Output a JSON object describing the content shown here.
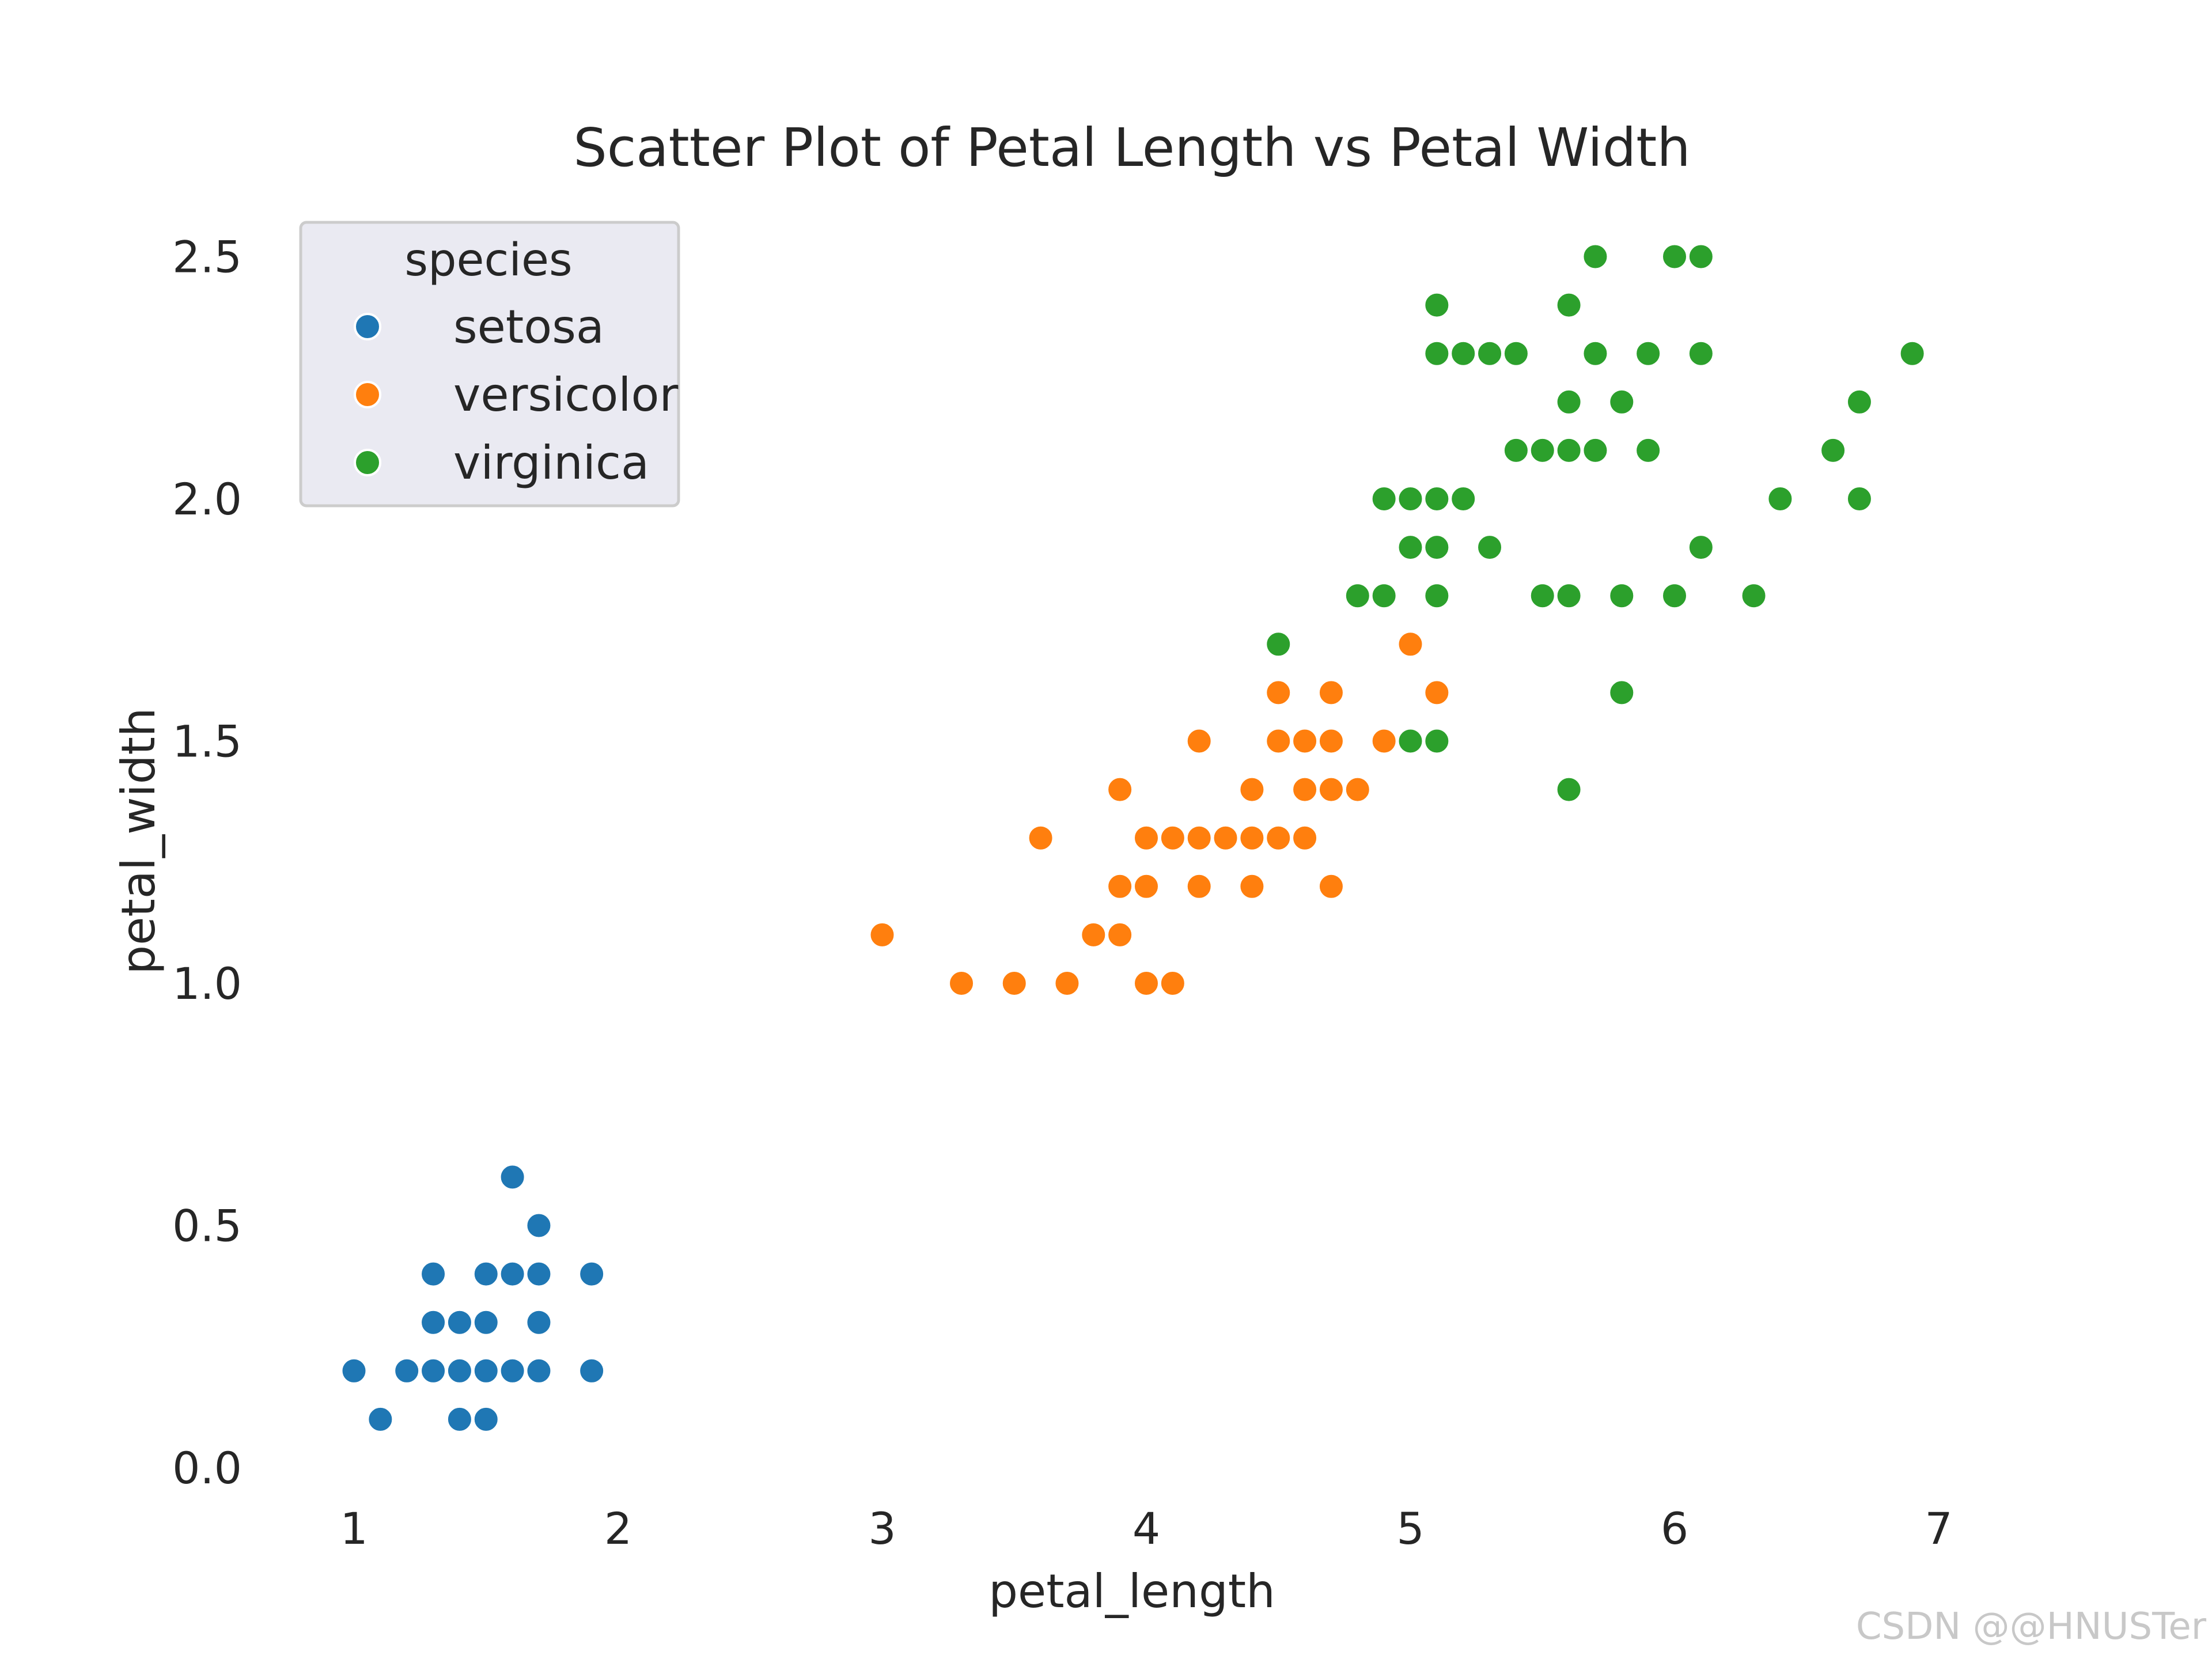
{
  "chart_data": {
    "type": "scatter",
    "title": "Scatter Plot of Petal Length vs Petal Width",
    "xlabel": "petal_length",
    "ylabel": "petal_width",
    "xlim": [
      0.7,
      7.2
    ],
    "ylim": [
      -0.05,
      2.6
    ],
    "xticks": [
      "1",
      "2",
      "3",
      "4",
      "5",
      "6",
      "7"
    ],
    "yticks": [
      "0.0",
      "0.5",
      "1.0",
      "1.5",
      "2.0",
      "2.5"
    ],
    "grid": false,
    "legend": {
      "title": "species",
      "placement": "top-left",
      "entries": [
        "setosa",
        "versicolor",
        "virginica"
      ]
    },
    "series": [
      {
        "name": "setosa",
        "color": "#1f77b4",
        "points": [
          [
            1.0,
            0.2
          ],
          [
            1.1,
            0.1
          ],
          [
            1.2,
            0.2
          ],
          [
            1.3,
            0.2
          ],
          [
            1.3,
            0.3
          ],
          [
            1.3,
            0.4
          ],
          [
            1.4,
            0.1
          ],
          [
            1.4,
            0.2
          ],
          [
            1.4,
            0.3
          ],
          [
            1.5,
            0.1
          ],
          [
            1.5,
            0.2
          ],
          [
            1.5,
            0.3
          ],
          [
            1.5,
            0.4
          ],
          [
            1.6,
            0.2
          ],
          [
            1.6,
            0.4
          ],
          [
            1.6,
            0.6
          ],
          [
            1.7,
            0.2
          ],
          [
            1.7,
            0.3
          ],
          [
            1.7,
            0.4
          ],
          [
            1.7,
            0.5
          ],
          [
            1.9,
            0.2
          ],
          [
            1.9,
            0.4
          ]
        ]
      },
      {
        "name": "versicolor",
        "color": "#ff7f0e",
        "points": [
          [
            3.0,
            1.1
          ],
          [
            3.3,
            1.0
          ],
          [
            3.5,
            1.0
          ],
          [
            3.6,
            1.3
          ],
          [
            3.7,
            1.0
          ],
          [
            3.8,
            1.1
          ],
          [
            3.9,
            1.1
          ],
          [
            3.9,
            1.2
          ],
          [
            3.9,
            1.4
          ],
          [
            4.0,
            1.0
          ],
          [
            4.0,
            1.2
          ],
          [
            4.0,
            1.3
          ],
          [
            4.1,
            1.0
          ],
          [
            4.1,
            1.3
          ],
          [
            4.2,
            1.2
          ],
          [
            4.2,
            1.3
          ],
          [
            4.2,
            1.5
          ],
          [
            4.3,
            1.3
          ],
          [
            4.4,
            1.2
          ],
          [
            4.4,
            1.3
          ],
          [
            4.4,
            1.4
          ],
          [
            4.5,
            1.3
          ],
          [
            4.5,
            1.5
          ],
          [
            4.5,
            1.6
          ],
          [
            4.6,
            1.3
          ],
          [
            4.6,
            1.4
          ],
          [
            4.6,
            1.5
          ],
          [
            4.7,
            1.2
          ],
          [
            4.7,
            1.4
          ],
          [
            4.7,
            1.5
          ],
          [
            4.7,
            1.6
          ],
          [
            4.8,
            1.4
          ],
          [
            4.9,
            1.5
          ],
          [
            5.0,
            1.7
          ],
          [
            5.1,
            1.6
          ]
        ]
      },
      {
        "name": "virginica",
        "color": "#2ca02c",
        "points": [
          [
            4.5,
            1.7
          ],
          [
            4.8,
            1.8
          ],
          [
            4.9,
            1.8
          ],
          [
            4.9,
            2.0
          ],
          [
            5.0,
            1.5
          ],
          [
            5.0,
            1.9
          ],
          [
            5.0,
            2.0
          ],
          [
            5.1,
            1.5
          ],
          [
            5.1,
            1.8
          ],
          [
            5.1,
            1.9
          ],
          [
            5.1,
            2.0
          ],
          [
            5.1,
            2.3
          ],
          [
            5.1,
            2.4
          ],
          [
            5.2,
            2.0
          ],
          [
            5.2,
            2.3
          ],
          [
            5.3,
            1.9
          ],
          [
            5.3,
            2.3
          ],
          [
            5.4,
            2.1
          ],
          [
            5.4,
            2.3
          ],
          [
            5.5,
            1.8
          ],
          [
            5.5,
            2.1
          ],
          [
            5.6,
            1.4
          ],
          [
            5.6,
            1.8
          ],
          [
            5.6,
            2.1
          ],
          [
            5.6,
            2.2
          ],
          [
            5.6,
            2.4
          ],
          [
            5.7,
            2.1
          ],
          [
            5.7,
            2.3
          ],
          [
            5.7,
            2.5
          ],
          [
            5.8,
            1.6
          ],
          [
            5.8,
            1.8
          ],
          [
            5.8,
            2.2
          ],
          [
            5.9,
            2.1
          ],
          [
            5.9,
            2.3
          ],
          [
            6.0,
            1.8
          ],
          [
            6.0,
            2.5
          ],
          [
            6.1,
            1.9
          ],
          [
            6.1,
            2.3
          ],
          [
            6.1,
            2.5
          ],
          [
            6.3,
            1.8
          ],
          [
            6.4,
            2.0
          ],
          [
            6.6,
            2.1
          ],
          [
            6.7,
            2.0
          ],
          [
            6.7,
            2.2
          ],
          [
            6.9,
            2.3
          ]
        ]
      }
    ]
  },
  "watermark": "CSDN @@HNUSTer",
  "colors": {
    "legend_bg": "#eaeaf2",
    "legend_border": "#cccccc",
    "text": "#262626"
  }
}
